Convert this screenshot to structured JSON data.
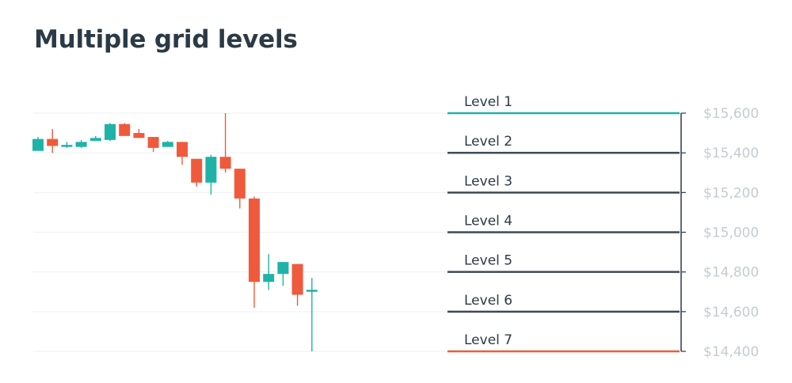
{
  "title": "Multiple grid levels",
  "colors": {
    "up": "#1fb3a8",
    "down": "#ef5a3c",
    "gridline": "#eef0f2",
    "level_line": "#3c4a54",
    "level_first": "#1fb3a8",
    "level_last": "#ef5a3c",
    "axis_label": "#c3ccd1",
    "level_label": "#2c3a45",
    "title": "#2c3a45"
  },
  "chart_data": {
    "type": "candlestick",
    "y_axis": {
      "position": "right",
      "min": 14400,
      "max": 15600,
      "ticks": [
        15600,
        15400,
        15200,
        15000,
        14800,
        14600,
        14400
      ],
      "tick_labels": [
        "$15,600",
        "$15,400",
        "$15,200",
        "$15,000",
        "$14,800",
        "$14,600",
        "$14,400"
      ]
    },
    "grid": true,
    "candles": [
      {
        "o": 15410,
        "h": 15480,
        "l": 15410,
        "c": 15470
      },
      {
        "o": 15470,
        "h": 15520,
        "l": 15400,
        "c": 15435
      },
      {
        "o": 15435,
        "h": 15455,
        "l": 15425,
        "c": 15440
      },
      {
        "o": 15430,
        "h": 15465,
        "l": 15425,
        "c": 15455
      },
      {
        "o": 15460,
        "h": 15485,
        "l": 15460,
        "c": 15475
      },
      {
        "o": 15465,
        "h": 15550,
        "l": 15460,
        "c": 15545
      },
      {
        "o": 15545,
        "h": 15550,
        "l": 15485,
        "c": 15485
      },
      {
        "o": 15500,
        "h": 15520,
        "l": 15475,
        "c": 15475
      },
      {
        "o": 15480,
        "h": 15480,
        "l": 15405,
        "c": 15425
      },
      {
        "o": 15430,
        "h": 15460,
        "l": 15430,
        "c": 15455
      },
      {
        "o": 15455,
        "h": 15455,
        "l": 15340,
        "c": 15380
      },
      {
        "o": 15370,
        "h": 15370,
        "l": 15230,
        "c": 15250
      },
      {
        "o": 15250,
        "h": 15390,
        "l": 15190,
        "c": 15380
      },
      {
        "o": 15380,
        "h": 15600,
        "l": 15300,
        "c": 15320
      },
      {
        "o": 15320,
        "h": 15320,
        "l": 15120,
        "c": 15170
      },
      {
        "o": 15170,
        "h": 15180,
        "l": 14620,
        "c": 14750
      },
      {
        "o": 14750,
        "h": 14890,
        "l": 14710,
        "c": 14790
      },
      {
        "o": 14790,
        "h": 14850,
        "l": 14730,
        "c": 14850
      },
      {
        "o": 14840,
        "h": 14840,
        "l": 14630,
        "c": 14685
      },
      {
        "o": 14700,
        "h": 14770,
        "l": 14400,
        "c": 14710
      }
    ],
    "levels": [
      {
        "label": "Level 1",
        "value": 15600
      },
      {
        "label": "Level 2",
        "value": 15400
      },
      {
        "label": "Level 3",
        "value": 15200
      },
      {
        "label": "Level 4",
        "value": 15000
      },
      {
        "label": "Level 5",
        "value": 14800
      },
      {
        "label": "Level 6",
        "value": 14600
      },
      {
        "label": "Level 7",
        "value": 14400
      }
    ]
  }
}
